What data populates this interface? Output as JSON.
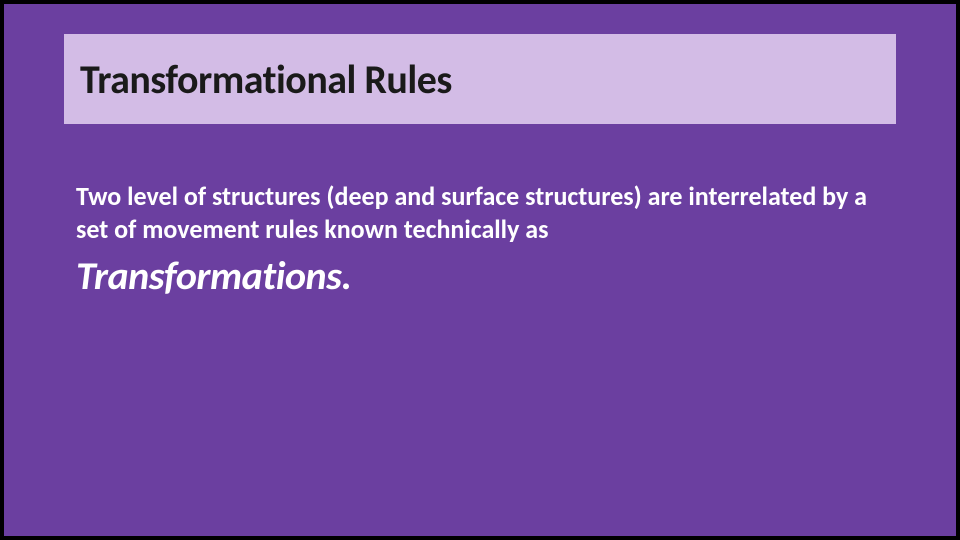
{
  "slide": {
    "background_color": "#6b3fa0",
    "outer_border_color": "#000000",
    "title": {
      "text": "Transformational Rules",
      "box_background": "#d3bce6",
      "font_size_pt": 40,
      "font_weight": 700,
      "text_color": "#1a1a1a"
    },
    "body": {
      "lead_text": "Two level of structures (deep and surface structures) are interrelated by a set of movement rules known technically as",
      "emphasis_text": "Transformations.",
      "lead_font_size_pt": 26,
      "lead_font_weight": 600,
      "emphasis_font_size_pt": 40,
      "emphasis_font_weight": 700,
      "emphasis_font_style": "italic",
      "text_color": "#ffffff"
    }
  }
}
